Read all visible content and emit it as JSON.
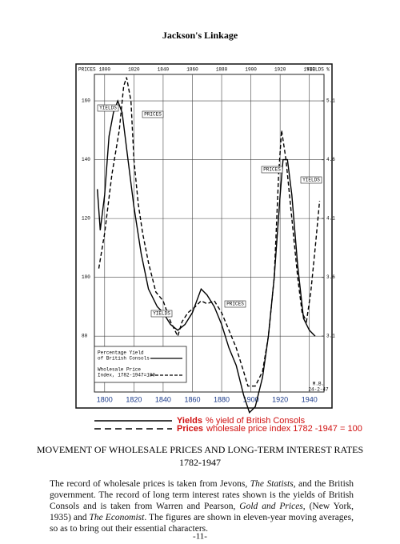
{
  "header": {
    "title": "Jackson's Linkage"
  },
  "chart_data": {
    "type": "line",
    "left_axis_label": "PRICES",
    "right_axis_label": "YIELDS %",
    "xlim": [
      1793,
      1950
    ],
    "xticks": [
      1800,
      1820,
      1840,
      1860,
      1880,
      1900,
      1920,
      1940
    ],
    "ylim": [
      61,
      169
    ],
    "yticks": [
      80,
      100,
      120,
      140,
      160
    ],
    "y2lim": [
      2.625,
      5.325
    ],
    "y2ticks": [
      3.1,
      3.6,
      4.1,
      4.6,
      5.1
    ],
    "grid": true,
    "series": [
      {
        "name": "Yields",
        "color": "#000000",
        "axis": "y2",
        "dash": false,
        "x": [
          1795,
          1797,
          1800,
          1803,
          1806,
          1809,
          1812,
          1816,
          1820,
          1825,
          1830,
          1836,
          1840,
          1845,
          1850,
          1855,
          1860,
          1866,
          1870,
          1875,
          1880,
          1885,
          1890,
          1895,
          1899,
          1903,
          1908,
          1912,
          1916,
          1920,
          1922,
          1925,
          1928,
          1932,
          1936,
          1940,
          1944
        ],
        "values": [
          4.35,
          4.0,
          4.3,
          4.8,
          5.0,
          5.1,
          5.0,
          4.6,
          4.2,
          3.8,
          3.5,
          3.35,
          3.3,
          3.2,
          3.15,
          3.2,
          3.3,
          3.5,
          3.45,
          3.35,
          3.2,
          3.0,
          2.85,
          2.6,
          2.45,
          2.5,
          2.75,
          3.1,
          3.6,
          4.3,
          4.6,
          4.6,
          4.3,
          3.7,
          3.25,
          3.15,
          3.1
        ]
      },
      {
        "name": "Prices",
        "color": "#000000",
        "axis": "y",
        "dash": true,
        "x": [
          1796,
          1800,
          1805,
          1810,
          1813,
          1815,
          1818,
          1820,
          1823,
          1826,
          1830,
          1835,
          1840,
          1845,
          1850,
          1853,
          1857,
          1862,
          1866,
          1870,
          1875,
          1880,
          1885,
          1890,
          1895,
          1898,
          1903,
          1908,
          1912,
          1916,
          1919,
          1921,
          1924,
          1928,
          1932,
          1935,
          1938,
          1941,
          1944,
          1947
        ],
        "values": [
          103,
          115,
          135,
          150,
          165,
          168,
          160,
          140,
          125,
          115,
          105,
          95,
          92,
          85,
          80,
          85,
          88,
          90,
          92,
          91,
          92,
          88,
          82,
          76,
          68,
          63,
          63,
          68,
          80,
          100,
          135,
          150,
          140,
          120,
          100,
          88,
          85,
          95,
          110,
          126
        ]
      }
    ],
    "annotations": [
      "YIELDS",
      "PRICES",
      "PRICES",
      "YIELDS",
      "YIELDS",
      "PRICES"
    ],
    "inset_legend": [
      [
        "Percentage Yield",
        "of British Consols"
      ],
      [
        "Wholesale Price",
        "Index, 1782-1947=100"
      ]
    ],
    "signature": [
      "M.B.",
      "24-2-47"
    ],
    "legend_descriptions": [
      "% yield of British Consols",
      "wholesale price index 1782 -1947 = 100"
    ]
  },
  "caption": {
    "title": "MOVEMENT OF WHOLESALE PRICES AND LONG-TERM INTEREST RATES",
    "subtitle": "1782-1947"
  },
  "body": [
    {
      "text": "The record of wholesale prices is taken from Jevons, ",
      "italic": false
    },
    {
      "text": "The Statists",
      "italic": true
    },
    {
      "text": ", and the British government. The record of long term interest rates shown is the yields of British Consols and is taken from Warren and Pearson, ",
      "italic": false
    },
    {
      "text": "Gold and Prices",
      "italic": true
    },
    {
      "text": ", (New York, 1935) and ",
      "italic": false
    },
    {
      "text": "The Economist",
      "italic": true
    },
    {
      "text": ". The figures are shown in eleven-year moving averages, so as to bring out their essential characters.",
      "italic": false
    }
  ],
  "footer": {
    "page": "-11-"
  }
}
